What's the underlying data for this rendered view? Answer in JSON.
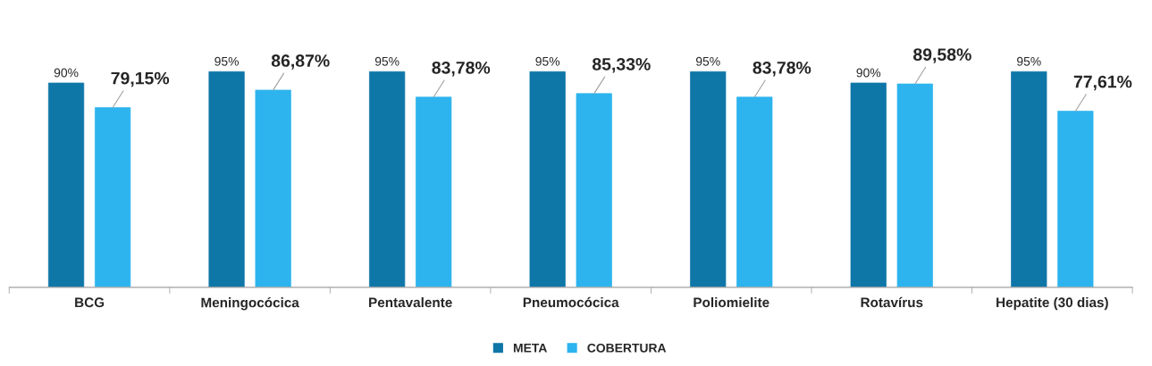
{
  "chart_data": {
    "type": "bar",
    "categories": [
      "BCG",
      "Meningocócica",
      "Pentavalente",
      "Pneumocócica",
      "Poliomielite",
      "Rotavírus",
      "Hepatite (30 dias)"
    ],
    "series": [
      {
        "name": "META",
        "color": "#0f76a8",
        "values": [
          90,
          95,
          95,
          95,
          95,
          90,
          95
        ],
        "value_labels": [
          "90%",
          "95%",
          "95%",
          "95%",
          "95%",
          "90%",
          "95%"
        ]
      },
      {
        "name": "COBERTURA",
        "color": "#2db4ee",
        "values": [
          79.15,
          86.87,
          83.78,
          85.33,
          83.78,
          89.58,
          77.61
        ],
        "value_labels": [
          "79,15%",
          "86,87%",
          "83,78%",
          "85,33%",
          "83,78%",
          "89,58%",
          "77,61%"
        ]
      }
    ],
    "grid": false,
    "legend": "bottom"
  }
}
